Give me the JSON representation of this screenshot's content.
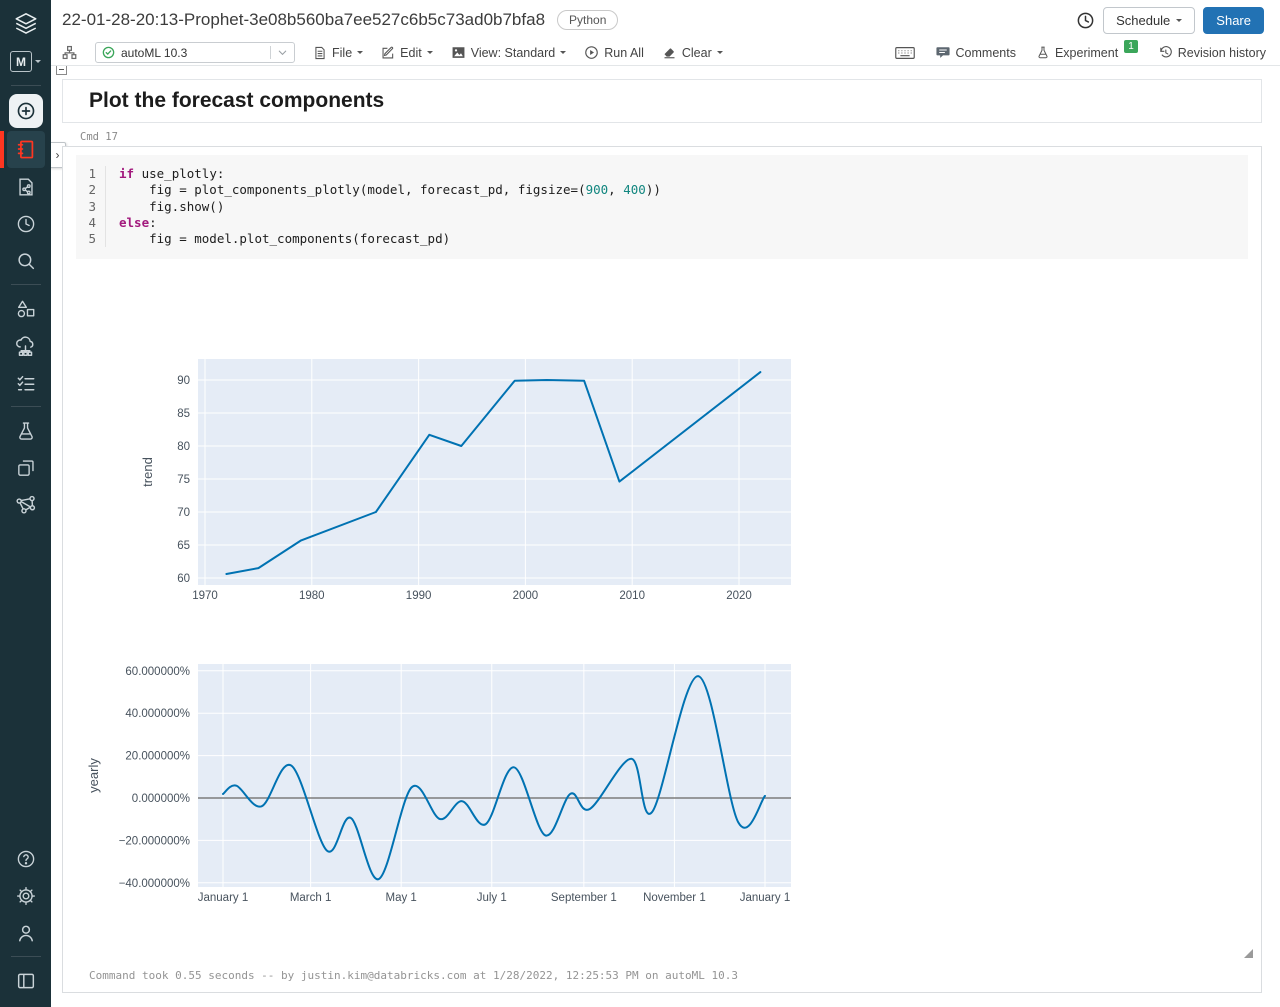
{
  "sidebar": {
    "workspace_letter": "M",
    "items": [
      "databricks-logo",
      "persona-switcher",
      "create",
      "notebook",
      "repos",
      "recents",
      "search",
      "data",
      "compute",
      "task-runs",
      "experiments",
      "feature-store",
      "models"
    ],
    "bottom_items": [
      "help",
      "settings",
      "account",
      "sidebar-toggle"
    ]
  },
  "header": {
    "title": "22-01-28-20:13-Prophet-3e08b560ba7ee527c6b5c73ad0b7bfa8",
    "language": "Python",
    "schedule_label": "Schedule",
    "share_label": "Share"
  },
  "toolbar": {
    "cluster_name": "autoML 10.3",
    "file_label": "File",
    "edit_label": "Edit",
    "view_label": "View: Standard",
    "run_all_label": "Run All",
    "clear_label": "Clear",
    "comments_label": "Comments",
    "experiment_label": "Experiment",
    "experiment_badge": "1",
    "revision_history_label": "Revision history"
  },
  "notebook": {
    "heading": "Plot the forecast components",
    "cmd_label": "Cmd 17",
    "code": [
      {
        "num": "1",
        "tokens": [
          {
            "t": "if",
            "c": "kw"
          },
          {
            "t": " use_plotly:",
            "c": ""
          }
        ]
      },
      {
        "num": "2",
        "tokens": [
          {
            "t": "    fig = plot_components_plotly(model, forecast_pd, figsize=(",
            "c": ""
          },
          {
            "t": "900",
            "c": "num"
          },
          {
            "t": ", ",
            "c": ""
          },
          {
            "t": "400",
            "c": "num"
          },
          {
            "t": "))",
            "c": ""
          }
        ]
      },
      {
        "num": "3",
        "tokens": [
          {
            "t": "    fig.show()",
            "c": ""
          }
        ]
      },
      {
        "num": "4",
        "tokens": [
          {
            "t": "else",
            "c": "kw"
          },
          {
            "t": ":",
            "c": ""
          }
        ]
      },
      {
        "num": "5",
        "tokens": [
          {
            "t": "    fig = model.plot_components(forecast_pd)",
            "c": ""
          }
        ]
      }
    ],
    "footer": "Command took 0.55 seconds -- by justin.kim@databricks.com at 1/28/2022, 12:25:53 PM on autoML 10.3"
  },
  "chart_data": [
    {
      "type": "line",
      "name": "trend-component",
      "ylabel": "trend",
      "xlabel": "",
      "x_ticks": [
        1970,
        1980,
        1990,
        2000,
        2010,
        2020
      ],
      "y_ticks": [
        60,
        65,
        70,
        75,
        80,
        85,
        90
      ],
      "xlim": [
        1964.4,
        2025.6
      ],
      "ylim": [
        58.9,
        93.2
      ],
      "points": [
        [
          1972,
          60.6
        ],
        [
          1975,
          61.5
        ],
        [
          1979,
          65.7
        ],
        [
          1986,
          70.0
        ],
        [
          1991,
          81.7
        ],
        [
          1994,
          80.0
        ],
        [
          1999,
          89.9
        ],
        [
          2002,
          90.0
        ],
        [
          2005.5,
          89.9
        ],
        [
          2008.8,
          74.6
        ],
        [
          2022,
          91.2
        ]
      ],
      "smooth": false,
      "zero_line": false,
      "grid": true,
      "line_color": "#0072b2",
      "plot_bg": "#e5ecf6"
    },
    {
      "type": "line",
      "name": "yearly-seasonality-component",
      "ylabel": "yearly",
      "xlabel": "",
      "x_unit": "day_of_year",
      "x_tick_days": [
        1,
        60,
        121,
        182,
        244,
        305,
        366
      ],
      "x_tick_labels": [
        "January 1",
        "March 1",
        "May 1",
        "July 1",
        "September 1",
        "November 1",
        "January 1"
      ],
      "y_tick_values": [
        60,
        40,
        20,
        0,
        -20,
        -40
      ],
      "y_tick_labels": [
        "60.000000%",
        "40.000000%",
        "20.000000%",
        "0.000000%",
        "−20.000000%",
        "−40.000000%"
      ],
      "xlim": [
        -16,
        384
      ],
      "ylim": [
        -42.0,
        63.2
      ],
      "points": [
        [
          1,
          1.9
        ],
        [
          10,
          5.8
        ],
        [
          27,
          -3.9
        ],
        [
          47,
          15.3
        ],
        [
          71,
          -24.8
        ],
        [
          87,
          -9.4
        ],
        [
          106,
          -38.2
        ],
        [
          128,
          5.0
        ],
        [
          147,
          -9.9
        ],
        [
          162,
          -1.5
        ],
        [
          178,
          -12.3
        ],
        [
          197,
          14.5
        ],
        [
          218,
          -17.6
        ],
        [
          235,
          2.0
        ],
        [
          248,
          -5.2
        ],
        [
          276,
          18.5
        ],
        [
          290,
          -6.6
        ],
        [
          321,
          57.5
        ],
        [
          348,
          -11.5
        ],
        [
          366,
          1.0
        ]
      ],
      "smooth": true,
      "zero_line": true,
      "grid": true,
      "line_color": "#0072b2",
      "plot_bg": "#e5ecf6",
      "zero_line_color": "#7c7c7c"
    }
  ],
  "colors": {
    "rail_bg": "#1b3139",
    "active_red": "#ff3621",
    "share_blue": "#2272b4",
    "badge_green": "#3ba65a",
    "plot_bg": "#e5ecf6",
    "line_blue": "#0072b2"
  }
}
